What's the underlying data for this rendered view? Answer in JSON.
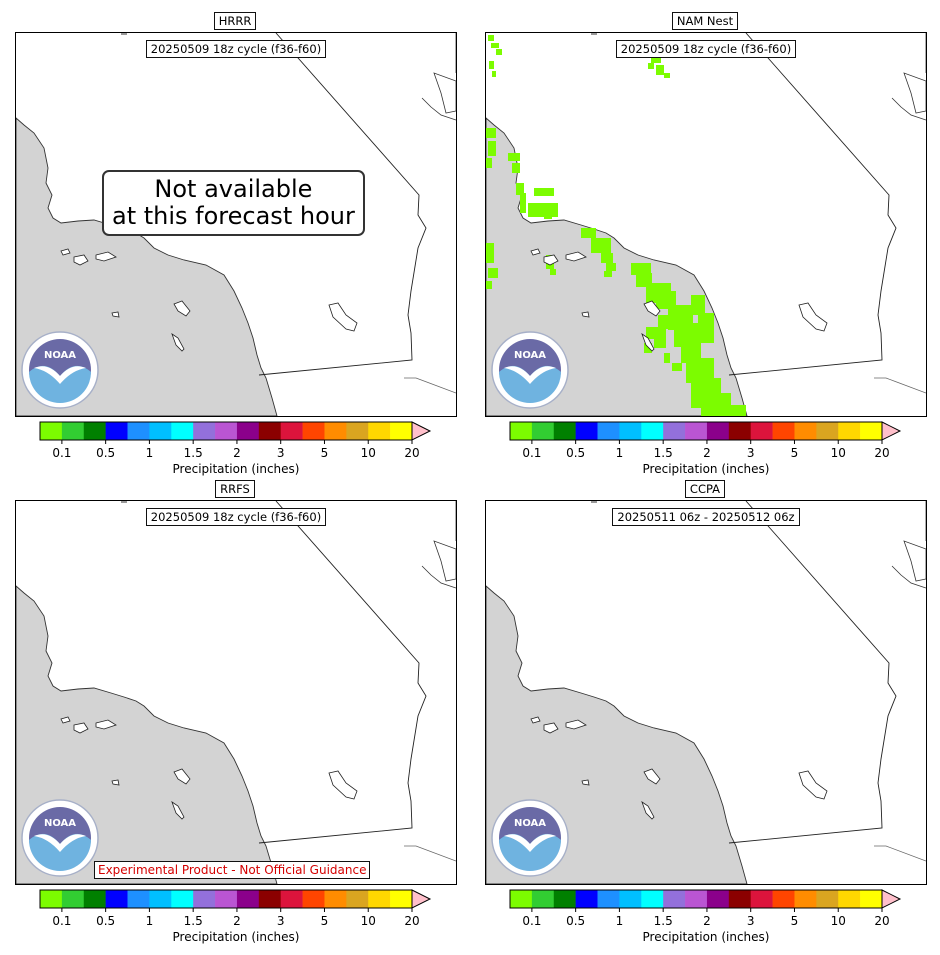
{
  "colorbar": {
    "label": "Precipitation (inches)",
    "ticks": [
      "0.1",
      "0.5",
      "1",
      "1.5",
      "2",
      "3",
      "5",
      "10",
      "20"
    ],
    "colors": [
      "#7cfc00",
      "#32cd32",
      "#008000",
      "#0000ff",
      "#1e90ff",
      "#00bfff",
      "#00ffff",
      "#9370db",
      "#ba55d3",
      "#8b008b",
      "#8b0000",
      "#dc143c",
      "#ff4500",
      "#ff8c00",
      "#daa520",
      "#ffd700",
      "#ffff00"
    ],
    "extend_color": "#ffc0cb"
  },
  "panels": [
    {
      "title": "HRRR",
      "cycle": "20250509 18z cycle (f36-f60)",
      "message": "Not available\nat this forecast hour",
      "has_precip": false
    },
    {
      "title": "NAM Nest",
      "cycle": "20250509 18z cycle (f36-f60)",
      "has_precip": true
    },
    {
      "title": "RRFS",
      "cycle": "20250509 18z cycle (f36-f60)",
      "disclaimer": "Experimental Product - Not Official Guidance",
      "has_precip": false
    },
    {
      "title": "CCPA",
      "cycle": "20250511 06z - 20250512 06z",
      "has_precip": false
    }
  ],
  "logo_text": "NOAA",
  "colors": {
    "ocean": "#d3d3d3",
    "land": "#ffffff",
    "precip": "#7cfc00",
    "disclaimer": "#d40000"
  }
}
